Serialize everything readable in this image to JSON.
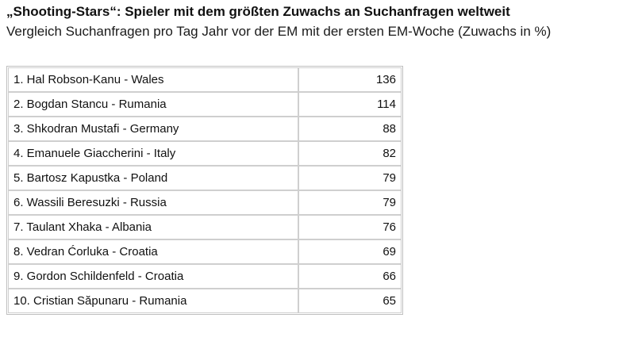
{
  "chart_data": {
    "type": "table",
    "title": "„Shooting-Stars“: Spieler mit dem größten Zuwachs an Suchanfragen weltweit",
    "subtitle": "Vergleich Suchanfragen pro Tag Jahr vor der EM mit der ersten EM-Woche (Zuwachs in %)",
    "rows": [
      {
        "label": "1. Hal Robson-Kanu - Wales",
        "value": "136"
      },
      {
        "label": "2. Bogdan Stancu - Rumania",
        "value": "114"
      },
      {
        "label": "3. Shkodran Mustafi - Germany",
        "value": "88"
      },
      {
        "label": "4. Emanuele Giaccherini - Italy",
        "value": "82"
      },
      {
        "label": "5. Bartosz Kapustka - Poland",
        "value": "79"
      },
      {
        "label": "6. Wassili Beresuzki - Russia",
        "value": "79"
      },
      {
        "label": "7. Taulant Xhaka - Albania",
        "value": "76"
      },
      {
        "label": "8. Vedran Ćorluka - Croatia",
        "value": "69"
      },
      {
        "label": "9. Gordon Schildenfeld - Croatia",
        "value": "66"
      },
      {
        "label": "10. Cristian Săpunaru - Rumania",
        "value": "65"
      }
    ]
  }
}
